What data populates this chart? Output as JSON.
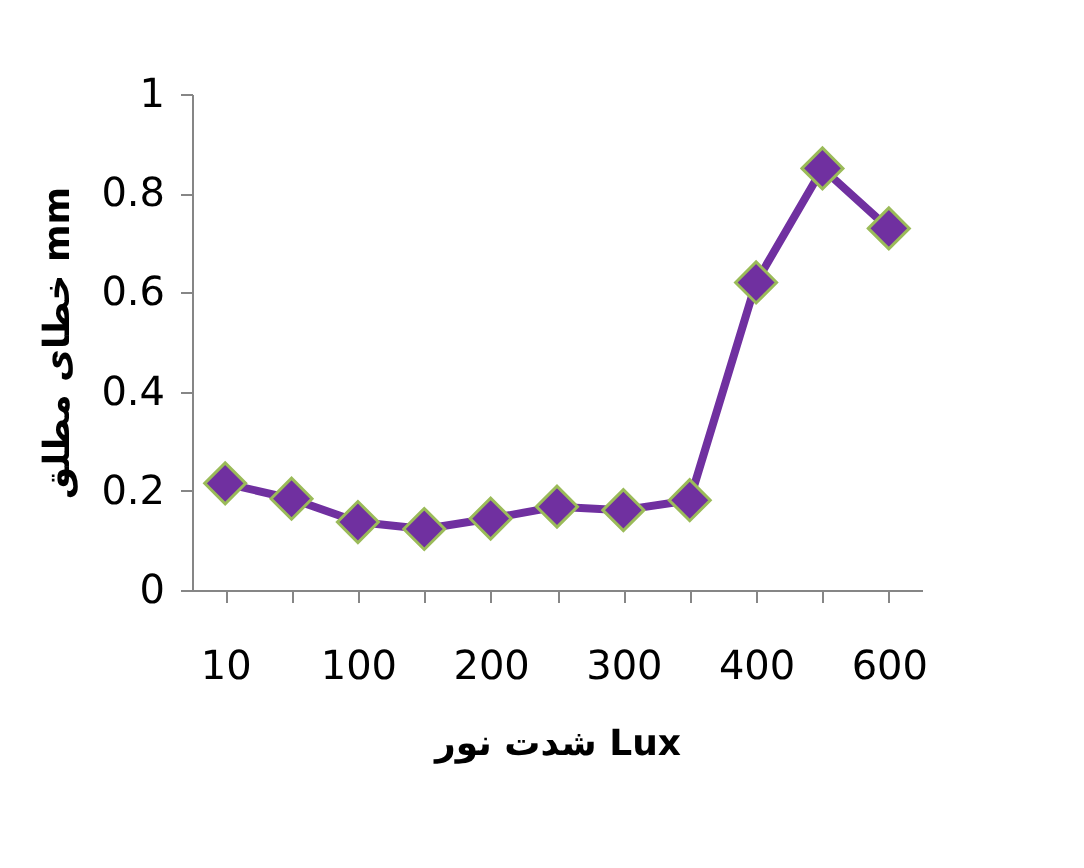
{
  "chart_data": {
    "type": "line",
    "xlabel": "شدت نور Lux",
    "ylabel": "خطای مطلق mm",
    "categories": [
      "10",
      null,
      "100",
      null,
      "200",
      null,
      "300",
      null,
      "400",
      null,
      "600"
    ],
    "series": [
      {
        "color": "#7030a0",
        "values": [
          0.215,
          0.184,
          0.137,
          0.123,
          0.144,
          0.168,
          0.161,
          0.181,
          0.62,
          0.85,
          0.729
        ]
      }
    ],
    "ylim": [
      0,
      1
    ],
    "yticks": [
      0,
      0.2,
      0.4,
      0.6,
      0.8,
      1
    ],
    "grid": false,
    "marker": "diamond",
    "line_style": "solid"
  }
}
